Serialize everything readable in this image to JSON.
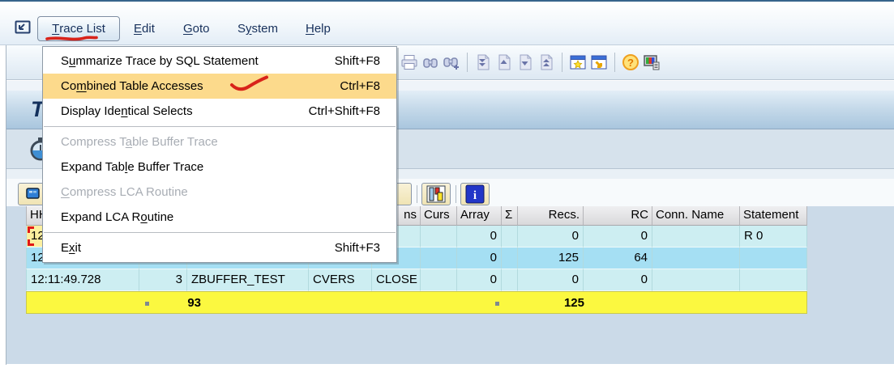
{
  "colors": {
    "top_border": "#36648b",
    "menu_highlight": "#fcda8c",
    "row_light": "#cdeef2",
    "row_selected": "#a5dff3",
    "totals_row": "#fbf840",
    "cursor_cell": "#fcef9f",
    "annotation_red": "#d8231a"
  },
  "menubar": {
    "menu_button": {
      "label": "Trace List",
      "accel_index": 0
    },
    "items": [
      {
        "label": "Edit",
        "accel_index": 0
      },
      {
        "label": "Goto",
        "accel_index": 0
      },
      {
        "label": "System",
        "accel_index": 1
      },
      {
        "label": "Help",
        "accel_index": 0
      }
    ]
  },
  "dropdown_menu": {
    "items": [
      {
        "label": "Summarize Trace by SQL Statement",
        "accel_index": 1,
        "shortcut": "Shift+F8",
        "disabled": false,
        "highlighted": false
      },
      {
        "label": "Combined Table Accesses",
        "accel_index": 2,
        "shortcut": "Ctrl+F8",
        "disabled": false,
        "highlighted": true
      },
      {
        "label": "Display Identical Selects",
        "accel_index": 11,
        "shortcut": "Ctrl+Shift+F8",
        "disabled": false,
        "highlighted": false
      },
      {
        "separator": true
      },
      {
        "label": "Compress Table Buffer Trace",
        "accel_index": 10,
        "shortcut": "",
        "disabled": true,
        "highlighted": false
      },
      {
        "label": "Expand Table Buffer Trace",
        "accel_index": 10,
        "shortcut": "",
        "disabled": false,
        "highlighted": false
      },
      {
        "label": "Compress LCA Routine",
        "accel_index": 0,
        "shortcut": "",
        "disabled": true,
        "highlighted": false
      },
      {
        "label": "Expand LCA Routine",
        "accel_index": 12,
        "shortcut": "",
        "disabled": false,
        "highlighted": false
      },
      {
        "separator": true
      },
      {
        "label": "Exit",
        "accel_index": 1,
        "shortcut": "Shift+F3",
        "disabled": false,
        "highlighted": false
      }
    ]
  },
  "toolbar": {
    "icons": [
      "print",
      "find",
      "find-next",
      "first-page",
      "previous-page",
      "next-page",
      "last-page",
      "new-session",
      "create-shortcut",
      "help",
      "customize-layout"
    ]
  },
  "title": {
    "visible_text": "T"
  },
  "list_toolbar": {
    "icons": [
      "trace-display",
      "corner-dropdown",
      "chart",
      "info"
    ]
  },
  "table": {
    "headers": [
      "HH:MM:SS.MS",
      "",
      "",
      "",
      "ns",
      "Curs",
      "Array",
      "Σ",
      "Recs.",
      "RC",
      "Conn. Name",
      "Statement"
    ],
    "rows": [
      {
        "cells": [
          "12",
          "",
          "",
          "",
          "",
          "",
          "0",
          "",
          "0",
          "0",
          "",
          "R 0"
        ]
      },
      {
        "cells": [
          "12",
          "",
          "",
          "",
          "",
          "",
          "0",
          "",
          "125",
          "64",
          "",
          ""
        ]
      },
      {
        "cells": [
          "12:11:49.728",
          "3",
          "ZBUFFER_TEST",
          "CVERS",
          "CLOSE",
          "",
          "0",
          "",
          "0",
          "0",
          "",
          ""
        ]
      }
    ],
    "totals": {
      "duration_total": "93",
      "recs_total": "125"
    }
  }
}
